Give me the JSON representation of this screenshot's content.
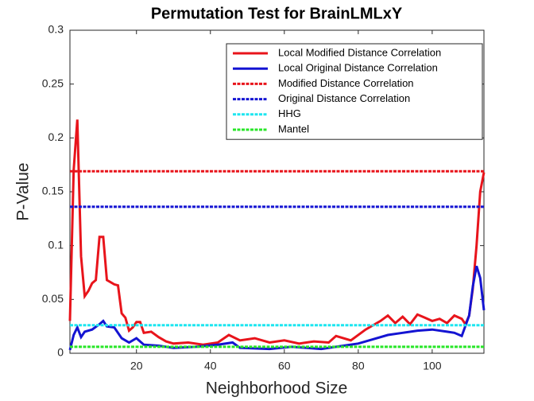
{
  "chart_data": {
    "type": "line",
    "title": "Permutation Test for BrainLMLxY",
    "xlabel": "Neighborhood Size",
    "ylabel": "P-Value",
    "xlim": [
      2,
      114
    ],
    "xticks": [
      20,
      40,
      60,
      80,
      100
    ],
    "ylim": [
      0,
      0.3
    ],
    "yticks": [
      0,
      0.05,
      0.1,
      0.15,
      0.2,
      0.25,
      0.3
    ],
    "legend": "northeast",
    "series": [
      {
        "name": "Local Modified Distance Correlation",
        "color": "#e8141b",
        "dashed": false,
        "x": [
          2,
          3,
          4,
          5,
          6,
          7,
          8,
          9,
          10,
          11,
          12,
          13,
          14,
          15,
          16,
          17,
          18,
          19,
          20,
          21,
          22,
          24,
          26,
          28,
          30,
          34,
          38,
          42,
          45,
          48,
          52,
          56,
          60,
          64,
          68,
          72,
          74,
          78,
          82,
          86,
          88,
          90,
          92,
          94,
          96,
          98,
          100,
          102,
          104,
          106,
          108,
          109,
          110,
          111,
          112,
          113,
          114
        ],
        "values": [
          0.03,
          0.17,
          0.217,
          0.09,
          0.053,
          0.058,
          0.065,
          0.068,
          0.108,
          0.108,
          0.068,
          0.066,
          0.064,
          0.063,
          0.037,
          0.033,
          0.021,
          0.024,
          0.029,
          0.029,
          0.019,
          0.02,
          0.015,
          0.011,
          0.009,
          0.01,
          0.008,
          0.01,
          0.017,
          0.012,
          0.014,
          0.01,
          0.012,
          0.009,
          0.011,
          0.01,
          0.016,
          0.012,
          0.022,
          0.03,
          0.035,
          0.028,
          0.034,
          0.027,
          0.036,
          0.033,
          0.03,
          0.032,
          0.028,
          0.035,
          0.032,
          0.027,
          0.035,
          0.06,
          0.1,
          0.15,
          0.168
        ]
      },
      {
        "name": "Local Original Distance Correlation",
        "color": "#1414d2",
        "dashed": false,
        "x": [
          2,
          3,
          4,
          5,
          6,
          8,
          10,
          11,
          12,
          14,
          16,
          18,
          20,
          22,
          26,
          30,
          36,
          42,
          46,
          48,
          56,
          62,
          70,
          76,
          80,
          84,
          88,
          92,
          96,
          100,
          104,
          106,
          108,
          110,
          111,
          112,
          113,
          114
        ],
        "values": [
          0.003,
          0.017,
          0.024,
          0.015,
          0.02,
          0.022,
          0.027,
          0.03,
          0.025,
          0.024,
          0.014,
          0.01,
          0.014,
          0.008,
          0.007,
          0.005,
          0.006,
          0.008,
          0.01,
          0.005,
          0.004,
          0.006,
          0.004,
          0.007,
          0.009,
          0.013,
          0.017,
          0.019,
          0.021,
          0.022,
          0.02,
          0.019,
          0.016,
          0.035,
          0.062,
          0.081,
          0.07,
          0.04
        ]
      },
      {
        "name": "Modified Distance Correlation",
        "color": "#e8141b",
        "dashed": true,
        "x": [
          2,
          114
        ],
        "values": [
          0.169,
          0.169
        ]
      },
      {
        "name": "Original Distance Correlation",
        "color": "#1414d2",
        "dashed": true,
        "x": [
          2,
          114
        ],
        "values": [
          0.136,
          0.136
        ]
      },
      {
        "name": "HHG",
        "color": "#1ee6f0",
        "dashed": true,
        "x": [
          2,
          114
        ],
        "values": [
          0.026,
          0.026
        ]
      },
      {
        "name": "Mantel",
        "color": "#28e628",
        "dashed": true,
        "x": [
          2,
          114
        ],
        "values": [
          0.006,
          0.006
        ]
      }
    ]
  }
}
